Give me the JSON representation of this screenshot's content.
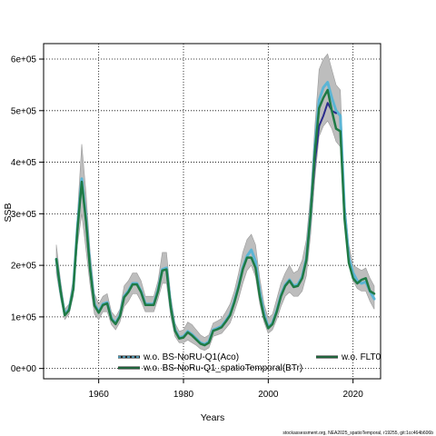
{
  "chart_data": {
    "type": "line",
    "xlabel": "Years",
    "ylabel": "SSB",
    "xlim": [
      1947,
      2026.5
    ],
    "ylim": [
      -20000,
      630000
    ],
    "x_ticks": [
      1960,
      1980,
      2000,
      2020
    ],
    "x_tick_labels": [
      "1960",
      "1980",
      "2000",
      "2020"
    ],
    "y_ticks": [
      0,
      100000,
      200000,
      300000,
      400000,
      500000,
      600000
    ],
    "y_tick_labels": [
      "0e+00",
      "1e+05",
      "2e+05",
      "3e+05",
      "4e+05",
      "5e+05",
      "6e+05"
    ],
    "grid": true,
    "legend_position": "bottom",
    "footer": "stockassessment.org, NEA2025_spatioTemporal, r19255, git:1cc464b606b",
    "band": {
      "x": [
        1950,
        1951,
        1952,
        1953,
        1954,
        1955,
        1956,
        1957,
        1958,
        1959,
        1960,
        1961,
        1962,
        1963,
        1964,
        1965,
        1966,
        1967,
        1968,
        1969,
        1970,
        1971,
        1972,
        1973,
        1974,
        1975,
        1976,
        1977,
        1978,
        1979,
        1980,
        1981,
        1982,
        1983,
        1984,
        1985,
        1986,
        1987,
        1988,
        1989,
        1990,
        1991,
        1992,
        1993,
        1994,
        1995,
        1996,
        1997,
        1998,
        1999,
        2000,
        2001,
        2002,
        2003,
        2004,
        2005,
        2006,
        2007,
        2008,
        2009,
        2010,
        2011,
        2012,
        2013,
        2014,
        2015,
        2016,
        2017,
        2018,
        2019,
        2020,
        2021,
        2022,
        2023,
        2024,
        2025
      ],
      "lower": [
        185000,
        135000,
        95000,
        105000,
        140000,
        240000,
        300000,
        230000,
        160000,
        105000,
        95000,
        110000,
        110000,
        85000,
        75000,
        90000,
        120000,
        130000,
        145000,
        145000,
        130000,
        110000,
        110000,
        110000,
        135000,
        165000,
        165000,
        100000,
        62000,
        50000,
        50000,
        55000,
        50000,
        45000,
        38000,
        35000,
        40000,
        62000,
        65000,
        68000,
        78000,
        88000,
        110000,
        135000,
        165000,
        190000,
        200000,
        178000,
        125000,
        90000,
        68000,
        75000,
        95000,
        120000,
        140000,
        148000,
        140000,
        140000,
        150000,
        180000,
        260000,
        370000,
        450000,
        470000,
        480000,
        465000,
        440000,
        430000,
        280000,
        200000,
        170000,
        155000,
        150000,
        150000,
        130000,
        115000
      ],
      "upper": [
        240000,
        170000,
        115000,
        125000,
        175000,
        300000,
        435000,
        340000,
        225000,
        145000,
        125000,
        140000,
        145000,
        110000,
        100000,
        115000,
        160000,
        170000,
        185000,
        185000,
        170000,
        140000,
        140000,
        140000,
        170000,
        225000,
        225000,
        140000,
        88000,
        72000,
        75000,
        90000,
        85000,
        75000,
        65000,
        60000,
        65000,
        88000,
        92000,
        97000,
        110000,
        125000,
        150000,
        185000,
        225000,
        250000,
        260000,
        240000,
        175000,
        125000,
        98000,
        105000,
        135000,
        165000,
        185000,
        200000,
        185000,
        190000,
        210000,
        250000,
        340000,
        470000,
        580000,
        600000,
        610000,
        580000,
        550000,
        540000,
        330000,
        240000,
        200000,
        195000,
        190000,
        195000,
        175000,
        160000
      ]
    },
    "series": [
      {
        "name": "",
        "color": "#5bb5d5",
        "width": 3,
        "x": [
          1950,
          1951,
          1952,
          1953,
          1954,
          1955,
          1956,
          1957,
          1958,
          1959,
          1960,
          1961,
          1962,
          1963,
          1964,
          1965,
          1966,
          1967,
          1968,
          1969,
          1970,
          1971,
          1972,
          1973,
          1974,
          1975,
          1976,
          1977,
          1978,
          1979,
          1980,
          1981,
          1982,
          1983,
          1984,
          1985,
          1986,
          1987,
          1988,
          1989,
          1990,
          1991,
          1992,
          1993,
          1994,
          1995,
          1996,
          1997,
          1998,
          1999,
          2000,
          2001,
          2002,
          2003,
          2004,
          2005,
          2006,
          2007,
          2008,
          2009,
          2010,
          2011,
          2012,
          2013,
          2014,
          2015,
          2016,
          2017,
          2018,
          2019,
          2020,
          2021,
          2022,
          2023,
          2024,
          2025
        ],
        "values": [
          212000,
          150000,
          105000,
          115000,
          155000,
          275000,
          368000,
          290000,
          195000,
          125000,
          110000,
          125000,
          128000,
          97000,
          88000,
          103000,
          140000,
          150000,
          165000,
          165000,
          150000,
          125000,
          125000,
          125000,
          152000,
          192000,
          195000,
          120000,
          75000,
          60000,
          62000,
          72000,
          66000,
          58000,
          50000,
          47000,
          52000,
          75000,
          78000,
          82000,
          93000,
          105000,
          130000,
          160000,
          195000,
          218000,
          230000,
          208000,
          148000,
          106000,
          80000,
          88000,
          112000,
          142000,
          162000,
          172000,
          160000,
          163000,
          178000,
          213000,
          300000,
          430000,
          520000,
          545000,
          555000,
          525000,
          500000,
          490000,
          305000,
          215000,
          185000,
          170000,
          165000,
          168000,
          150000,
          135000
        ]
      },
      {
        "name": "",
        "color": "#2b2b8c",
        "width": 2,
        "x": [
          2010,
          2011,
          2012,
          2013,
          2014,
          2015,
          2016
        ],
        "values": [
          300000,
          400000,
          470000,
          490000,
          515000,
          500000,
          495000
        ]
      },
      {
        "name": "",
        "color": "#1f7a45",
        "width": 2.5,
        "x": [
          1950,
          1951,
          1952,
          1953,
          1954,
          1955,
          1956,
          1957,
          1958,
          1959,
          1960,
          1961,
          1962,
          1963,
          1964,
          1965,
          1966,
          1967,
          1968,
          1969,
          1970,
          1971,
          1972,
          1973,
          1974,
          1975,
          1976,
          1977,
          1978,
          1979,
          1980,
          1981,
          1982,
          1983,
          1984,
          1985,
          1986,
          1987,
          1988,
          1989,
          1990,
          1991,
          1992,
          1993,
          1994,
          1995,
          1996,
          1997,
          1998,
          1999,
          2000,
          2001,
          2002,
          2003,
          2004,
          2005,
          2006,
          2007,
          2008,
          2009,
          2010,
          2011,
          2012,
          2013,
          2014,
          2015,
          2016,
          2017,
          2018,
          2019,
          2020,
          2021,
          2022,
          2023,
          2024,
          2025
        ],
        "values": [
          212000,
          150000,
          103000,
          113000,
          153000,
          270000,
          362000,
          285000,
          190000,
          122000,
          108000,
          123000,
          126000,
          95000,
          86000,
          101000,
          138000,
          148000,
          163000,
          163000,
          148000,
          123000,
          123000,
          123000,
          150000,
          190000,
          192000,
          118000,
          73000,
          58000,
          60000,
          70000,
          64000,
          56000,
          48000,
          45000,
          50000,
          73000,
          76000,
          80000,
          91000,
          103000,
          128000,
          158000,
          192000,
          215000,
          215000,
          195000,
          140000,
          100000,
          78000,
          86000,
          110000,
          140000,
          160000,
          170000,
          158000,
          160000,
          175000,
          210000,
          300000,
          420000,
          505000,
          525000,
          540000,
          500000,
          465000,
          460000,
          290000,
          205000,
          175000,
          165000,
          172000,
          175000,
          150000,
          145000
        ]
      }
    ],
    "legend": [
      {
        "label": "w.o. BS-NoRU-Q1(Aco)",
        "color": "#5bb5d5",
        "style": "dashed-on-dark"
      },
      {
        "label": "w.o. BS-NoRu-Q1_spatioTemporal(BTr)",
        "color": "#1f7a45",
        "style": "solid-on-dark"
      },
      {
        "label": "w.o. FLT0",
        "color": "#1f7a45",
        "style": "solid-on-dark"
      }
    ]
  }
}
